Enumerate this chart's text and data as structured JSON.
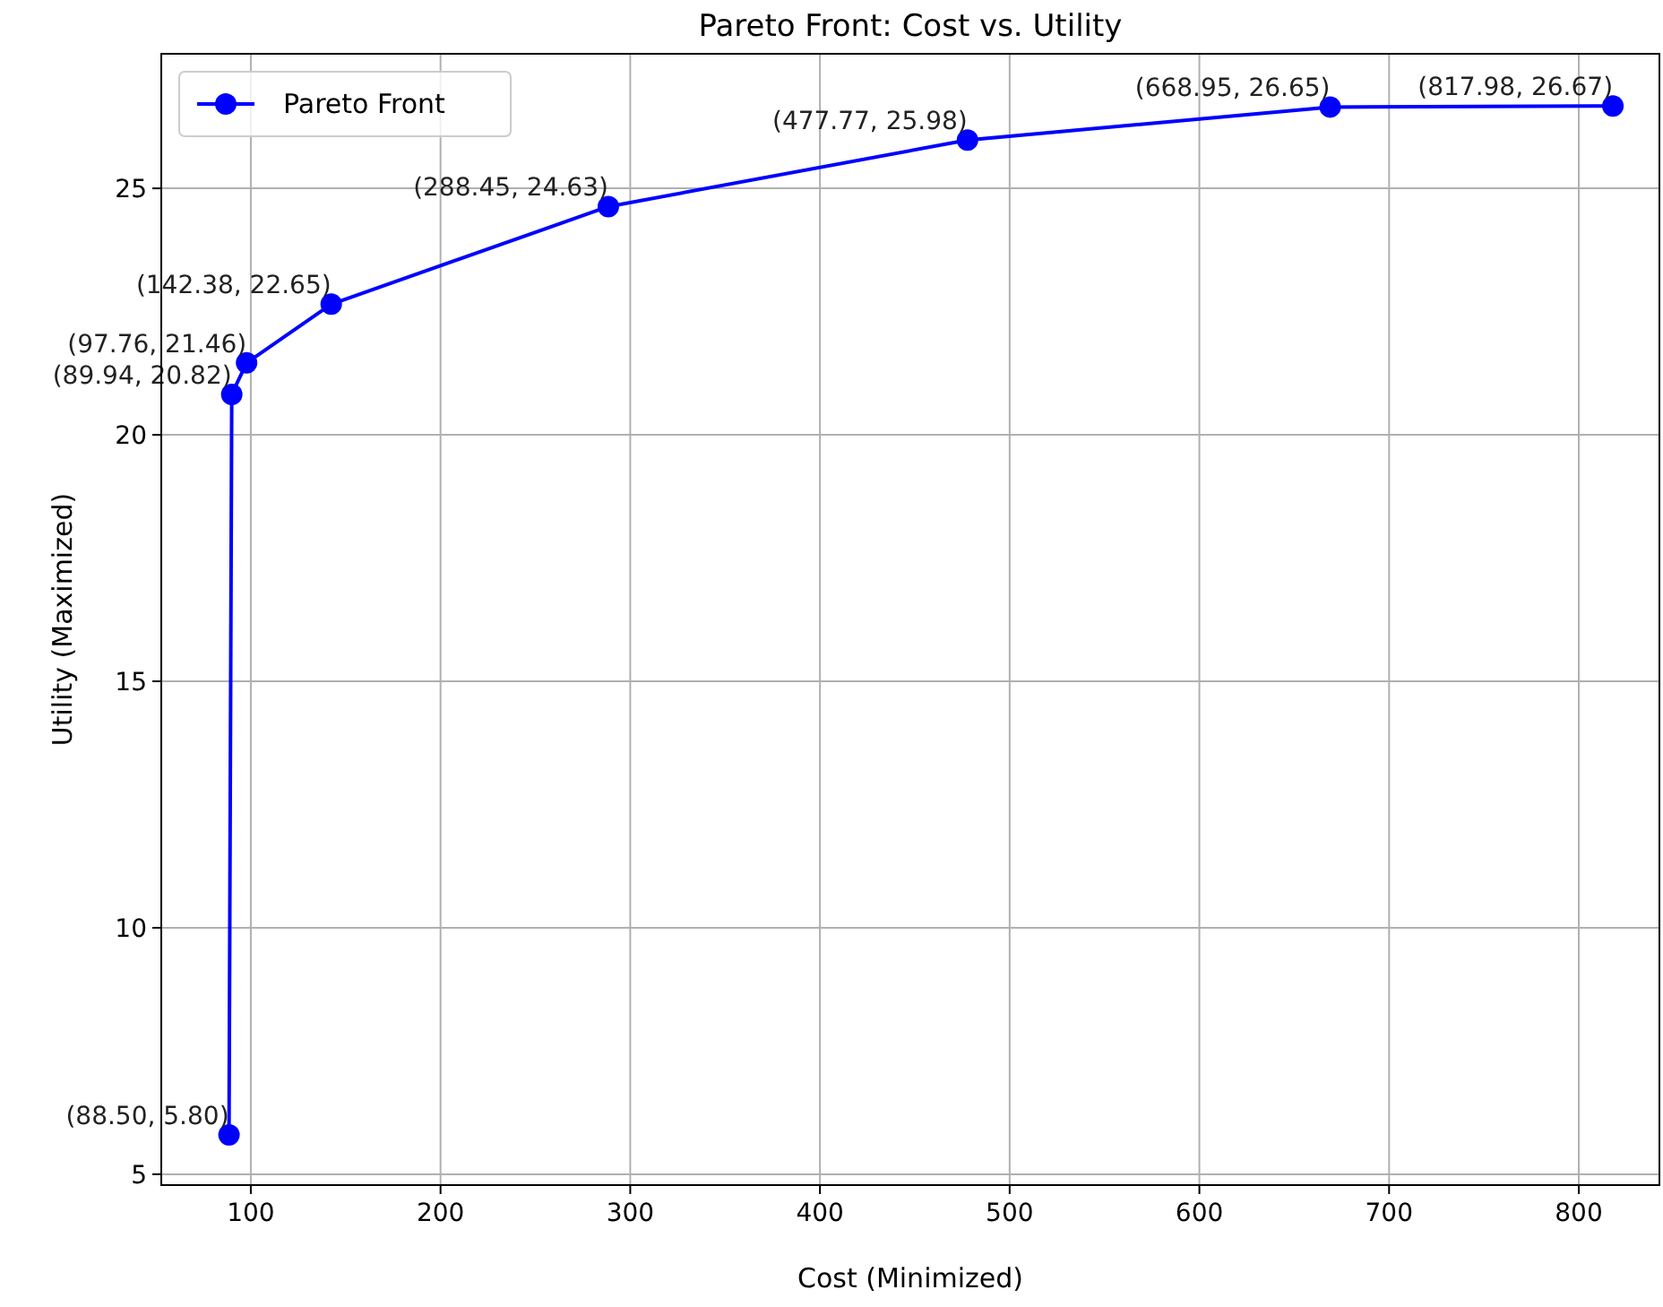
{
  "chart_data": {
    "type": "line",
    "title": "Pareto Front: Cost vs. Utility",
    "xlabel": "Cost (Minimized)",
    "ylabel": "Utility (Maximized)",
    "xlim": [
      52.8,
      842.5
    ],
    "ylim": [
      4.78,
      27.73
    ],
    "xticks": [
      100,
      200,
      300,
      400,
      500,
      600,
      700,
      800
    ],
    "yticks": [
      5,
      10,
      15,
      20,
      25
    ],
    "grid": true,
    "legend": "top left",
    "marker": "circle",
    "line_style": "solid",
    "series": [
      {
        "name": "Pareto Front",
        "color": "#0000ff",
        "x": [
          88.5,
          89.94,
          97.76,
          142.38,
          288.45,
          477.77,
          668.95,
          817.98
        ],
        "values": [
          5.8,
          20.82,
          21.46,
          22.65,
          24.63,
          25.98,
          26.65,
          26.67
        ],
        "value_labels": [
          "(88.50, 5.80)",
          "(89.94, 20.82)",
          "(97.76, 21.46)",
          "(142.38, 22.65)",
          "(288.45, 24.63)",
          "(477.77, 25.98)",
          "(668.95, 26.65)",
          "(817.98, 26.67)"
        ]
      }
    ]
  }
}
